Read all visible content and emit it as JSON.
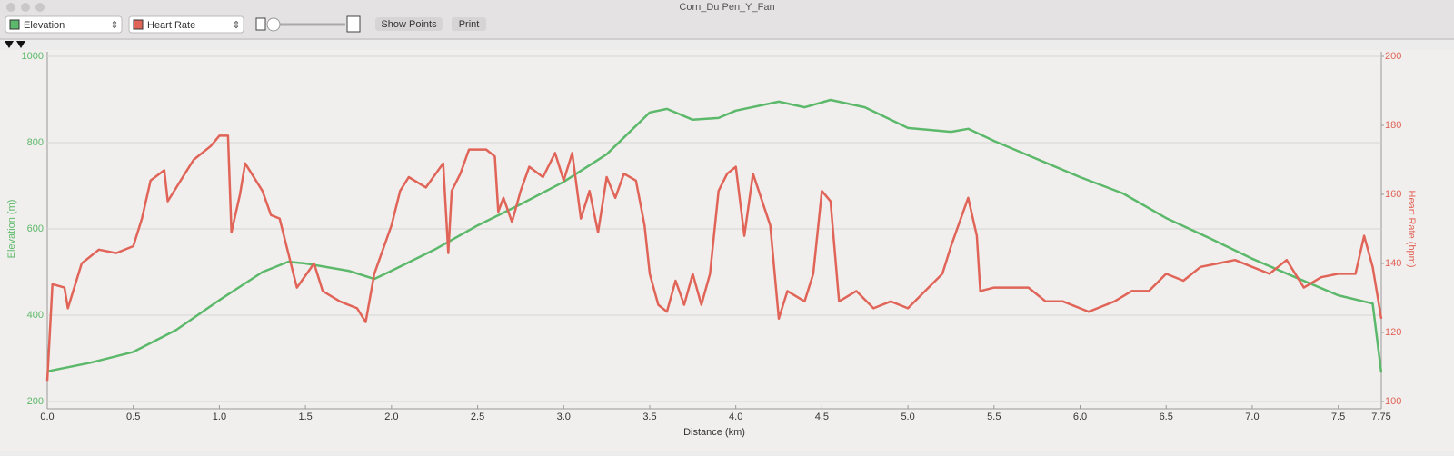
{
  "window": {
    "title": "Corn_Du Pen_Y_Fan",
    "buttons": [
      "Show Points",
      "Print"
    ]
  },
  "chart_data": {
    "type": "line",
    "x_label": "Distance (km)",
    "y_label": "Elevation (m)",
    "y2_label": "Heart Rate (bpm)",
    "xlim": [
      0,
      7.75
    ],
    "xticks": [
      {
        "value": 0,
        "label": "0.0"
      },
      0.5,
      {
        "value": 1,
        "label": "1.0"
      },
      1.5,
      {
        "value": 2,
        "label": "2.0"
      },
      2.5,
      {
        "value": 3,
        "label": "3.0"
      },
      3.5,
      {
        "value": 4,
        "label": "4.0"
      },
      4.5,
      {
        "value": 5,
        "label": "5.0"
      },
      5.5,
      {
        "value": 6,
        "label": "6.0"
      },
      6.5,
      {
        "value": 7,
        "label": "7.0"
      },
      7.5,
      7.75
    ],
    "ylim": [
      200,
      1000
    ],
    "yticks": [
      200,
      400,
      600,
      800,
      1000
    ],
    "y2lim": [
      100,
      200
    ],
    "y2ticks": [
      100,
      120,
      140,
      160,
      180,
      200
    ],
    "grid": true,
    "series": [
      {
        "name": "Elevation",
        "color": "#5cb86a",
        "x": [
          0,
          0.25,
          0.5,
          0.75,
          1.0,
          1.25,
          1.4,
          1.5,
          1.75,
          1.9,
          2.0,
          2.25,
          2.5,
          2.75,
          3.0,
          3.25,
          3.5,
          3.6,
          3.75,
          3.9,
          4.0,
          4.25,
          4.4,
          4.55,
          4.75,
          5.0,
          5.25,
          5.35,
          5.5,
          5.75,
          6.0,
          6.25,
          6.5,
          6.75,
          7.0,
          7.25,
          7.5,
          7.7,
          7.75
        ],
        "values": [
          270,
          290,
          315,
          366,
          435,
          500,
          524,
          520,
          503,
          484,
          503,
          552,
          608,
          657,
          709,
          773,
          870,
          878,
          853,
          857,
          874,
          895,
          882,
          899,
          882,
          834,
          825,
          832,
          804,
          762,
          720,
          682,
          625,
          579,
          531,
          488,
          446,
          427,
          267
        ]
      },
      {
        "name": "Heart Rate",
        "color": "#e06458",
        "axis": "y2",
        "x": [
          0.0,
          0.03,
          0.1,
          0.12,
          0.2,
          0.3,
          0.4,
          0.5,
          0.55,
          0.6,
          0.68,
          0.7,
          0.75,
          0.8,
          0.85,
          0.95,
          1.0,
          1.05,
          1.07,
          1.12,
          1.15,
          1.25,
          1.3,
          1.35,
          1.4,
          1.45,
          1.55,
          1.6,
          1.7,
          1.8,
          1.85,
          1.9,
          2.0,
          2.05,
          2.1,
          2.2,
          2.3,
          2.33,
          2.35,
          2.4,
          2.45,
          2.55,
          2.6,
          2.62,
          2.65,
          2.7,
          2.75,
          2.8,
          2.88,
          2.95,
          3.0,
          3.05,
          3.1,
          3.15,
          3.2,
          3.25,
          3.3,
          3.35,
          3.42,
          3.47,
          3.5,
          3.55,
          3.6,
          3.65,
          3.7,
          3.75,
          3.8,
          3.85,
          3.9,
          3.95,
          4.0,
          4.05,
          4.1,
          4.2,
          4.25,
          4.3,
          4.4,
          4.45,
          4.5,
          4.55,
          4.6,
          4.7,
          4.8,
          4.9,
          5.0,
          5.1,
          5.2,
          5.25,
          5.3,
          5.35,
          5.4,
          5.42,
          5.5,
          5.7,
          5.8,
          5.9,
          6.0,
          6.05,
          6.1,
          6.2,
          6.3,
          6.4,
          6.5,
          6.6,
          6.7,
          6.8,
          6.9,
          7.0,
          7.1,
          7.2,
          7.3,
          7.4,
          7.5,
          7.6,
          7.65,
          7.7,
          7.75
        ],
        "values": [
          106,
          134,
          133,
          127,
          140,
          144,
          143,
          145,
          153,
          164,
          167,
          158,
          162,
          166,
          170,
          174,
          177,
          177,
          149,
          160,
          169,
          161,
          154,
          153,
          143,
          133,
          140,
          132,
          129,
          127,
          123,
          137,
          151,
          161,
          165,
          162,
          169,
          143,
          161,
          166,
          173,
          173,
          171,
          155,
          159,
          152,
          161,
          168,
          165,
          172,
          164,
          172,
          153,
          161,
          149,
          165,
          159,
          166,
          164,
          151,
          137,
          128,
          126,
          135,
          128,
          137,
          128,
          137,
          161,
          166,
          168,
          148,
          166,
          151,
          124,
          132,
          129,
          137,
          161,
          158,
          129,
          132,
          127,
          129,
          127,
          132,
          137,
          145,
          152,
          159,
          148,
          132,
          133,
          133,
          129,
          129,
          127,
          126,
          127,
          129,
          132,
          132,
          137,
          135,
          139,
          140,
          141,
          139,
          137,
          141,
          133,
          136,
          137,
          137,
          148,
          139,
          124
        ]
      }
    ]
  }
}
